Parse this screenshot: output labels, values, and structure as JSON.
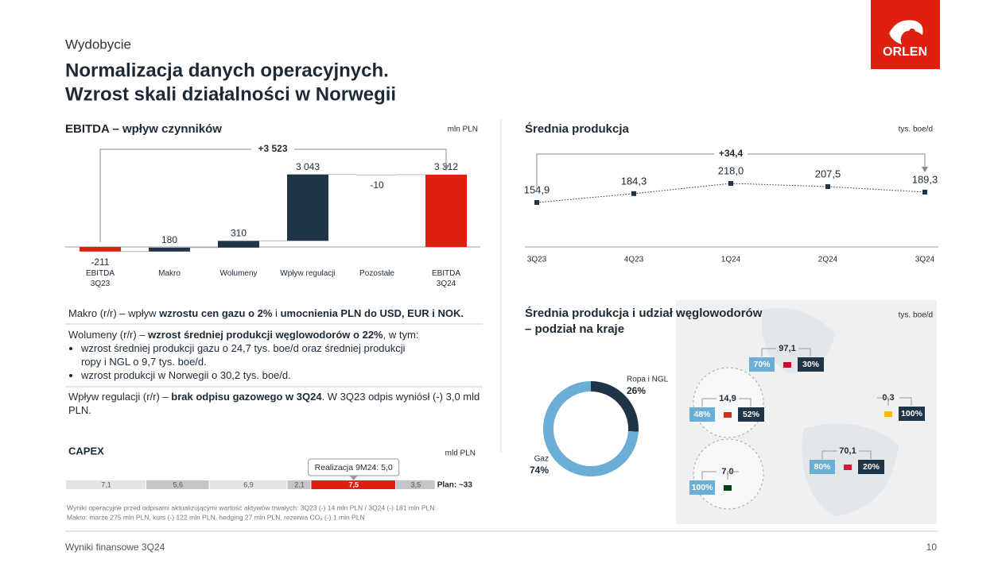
{
  "header": {
    "section": "Wydobycie",
    "title": [
      "Normalizacja danych operacyjnych.",
      "Wzrost skali działalności w Norwegii"
    ],
    "logo": "ORLEN"
  },
  "chart_data": [
    {
      "type": "waterfall",
      "title": "EBITDA – wpływ czynników",
      "unit": "mln PLN",
      "categories": [
        "EBITDA\n3Q23",
        "Makro",
        "Wolumeny",
        "Wpływ regulacji",
        "Pozostałe",
        "EBITDA\n3Q24"
      ],
      "values": [
        -211,
        180,
        310,
        3043,
        -10,
        3312
      ],
      "value_labels": [
        "-211",
        "180",
        "310",
        "3 043",
        "-10",
        "3 312"
      ],
      "measure": [
        "absolute",
        "relative",
        "relative",
        "relative",
        "relative",
        "absolute"
      ],
      "colors": {
        "total": "#e0200f",
        "increase": "#1f3446",
        "decrease": "#c9ced3"
      },
      "ylim": [
        -400,
        3600
      ],
      "annotation": "+3 523"
    },
    {
      "type": "line",
      "title": "Średnia produkcja",
      "unit": "tys. boe/d",
      "categories": [
        "3Q23",
        "4Q23",
        "1Q24",
        "2Q24",
        "3Q24"
      ],
      "values": [
        154.9,
        184.3,
        218.0,
        207.5,
        189.3
      ],
      "value_labels": [
        "154,9",
        "184,3",
        "218,0",
        "207,5",
        "189,3"
      ],
      "color": "#1f3446",
      "ylim": [
        0,
        260
      ],
      "annotation": "+34,4"
    },
    {
      "type": "stacked-hbar",
      "title": "CAPEX",
      "unit": "mld PLN",
      "values": [
        7.1,
        5.6,
        6.9,
        2.1,
        7.5,
        3.5
      ],
      "value_labels": [
        "7,1",
        "5,6",
        "6,9",
        "2,1",
        "7,5",
        "3,5"
      ],
      "colors": [
        "#e3e4e6",
        "#c3c5c8",
        "#e3e4e6",
        "#c3c5c8",
        "#e0200f",
        "#c3c5c8"
      ],
      "xlim": [
        0,
        33
      ],
      "plan": "Plan: ~33",
      "annotation": "Realizacja 9M24: 5,0"
    },
    {
      "type": "donut",
      "title": "Średnia produkcja i udział węglowodorów – podział na kraje",
      "unit": "tys. boe/d",
      "categories": [
        "Ropa i NGL",
        "Gaz"
      ],
      "values": [
        26,
        74
      ],
      "value_labels": [
        "26%",
        "74%"
      ],
      "colors": [
        "#1f3446",
        "#6aaed6"
      ]
    }
  ],
  "map": {
    "regions": [
      {
        "total": "97,1",
        "gas": "70%",
        "oil": "30%"
      },
      {
        "total": "14,9",
        "gas": "48%",
        "oil": "52%"
      },
      {
        "total": "0,3",
        "oil": "100%"
      },
      {
        "total": "70,1",
        "gas": "80%",
        "oil": "20%"
      },
      {
        "total": "7,0",
        "gas": "100%"
      }
    ]
  },
  "notes": [
    {
      "parts": [
        {
          "t": "Makro (r/r) – wpływ ",
          "b": false
        },
        {
          "t": "wzrostu cen gazu o 2%",
          "b": true
        },
        {
          "t": " i ",
          "b": false
        },
        {
          "t": "umocnienia PLN do USD, EUR i NOK.",
          "b": true
        }
      ]
    },
    {
      "parts": [
        {
          "t": "Wolumeny (r/r) – ",
          "b": false
        },
        {
          "t": "wzrost średniej produkcji węglowodorów o 22%",
          "b": true
        },
        {
          "t": ", w tym:",
          "b": false
        }
      ],
      "bullets": [
        "wzrost średniej produkcji gazu o 24,7 tys. boe/d oraz średniej produkcji ropy i NGL o 9,7 tys. boe/d.",
        "wzrost produkcji w Norwegii o 30,2 tys. boe/d."
      ]
    },
    {
      "parts": [
        {
          "t": "Wpływ regulacji (r/r) – ",
          "b": false
        },
        {
          "t": "brak odpisu gazowego w 3Q24",
          "b": true
        },
        {
          "t": ". W 3Q23 odpis wyniósł (-) 3,0 mld PLN.",
          "b": false
        }
      ]
    }
  ],
  "footnotes": [
    "Wyniki operacyjne przed odpisami aktualizującymi wartość aktywów trwałych: 3Q23 (-) 14 mln PLN / 3Q24 (-) 181 mln PLN",
    "Makro: marże 275 mln PLN, kurs (-) 122 mln PLN, hedging 27 mln PLN, rezerwa CO₂ (-) 1 mln PLN"
  ],
  "footer": {
    "left": "Wyniki finansowe 3Q24",
    "page": "10"
  }
}
